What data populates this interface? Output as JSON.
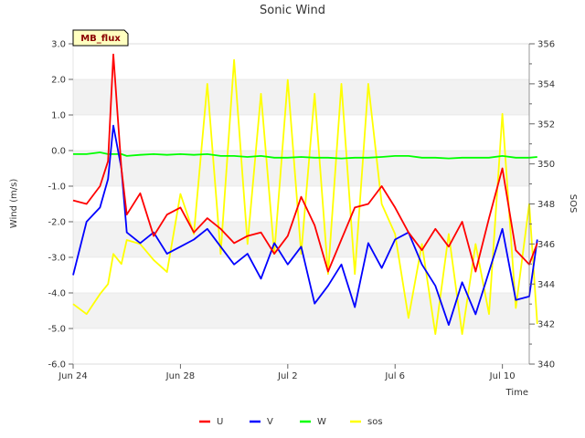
{
  "chart_data": {
    "type": "line",
    "title": "Sonic Wind",
    "badge": "MB_flux",
    "xlabel": "Time",
    "ylabel": "Wind (m/s)",
    "y2label": "SOS",
    "ylim": [
      -6.0,
      3.0
    ],
    "y2lim": [
      340,
      356
    ],
    "xlim": [
      0,
      17.0
    ],
    "yticks": [
      "3.0",
      "2.0",
      "1.0",
      "0.0",
      "-1.0",
      "-2.0",
      "-3.0",
      "-4.0",
      "-5.0",
      "-6.0"
    ],
    "y2ticks": [
      "356",
      "354",
      "352",
      "350",
      "348",
      "346",
      "344",
      "342",
      "340"
    ],
    "xticks": [
      {
        "label": "Jun 24",
        "x": 0
      },
      {
        "label": "Jun 28",
        "x": 4
      },
      {
        "label": "Jul 2",
        "x": 8
      },
      {
        "label": "Jul 6",
        "x": 12
      },
      {
        "label": "Jul 10",
        "x": 16
      }
    ],
    "x": [
      0,
      0.5,
      1.0,
      1.3,
      1.5,
      1.8,
      2.0,
      2.5,
      3.0,
      3.5,
      4.0,
      4.5,
      5.0,
      5.5,
      6.0,
      6.5,
      7.0,
      7.5,
      8.0,
      8.5,
      9.0,
      9.5,
      10.0,
      10.5,
      11.0,
      11.5,
      12.0,
      12.5,
      13.0,
      13.5,
      14.0,
      14.5,
      15.0,
      15.5,
      16.0,
      16.5,
      17.0,
      17.3
    ],
    "series": [
      {
        "name": "U",
        "color": "#ff0000",
        "axis": "left",
        "values": [
          -1.4,
          -1.5,
          -1.0,
          -0.3,
          2.7,
          -0.5,
          -1.8,
          -1.2,
          -2.4,
          -1.8,
          -1.6,
          -2.3,
          -1.9,
          -2.2,
          -2.6,
          -2.4,
          -2.3,
          -2.9,
          -2.4,
          -1.3,
          -2.1,
          -3.4,
          -2.5,
          -1.6,
          -1.5,
          -1.0,
          -1.6,
          -2.3,
          -2.8,
          -2.2,
          -2.7,
          -2.0,
          -3.4,
          -1.9,
          -0.5,
          -2.8,
          -3.2,
          -2.6
        ]
      },
      {
        "name": "V",
        "color": "#0000ff",
        "axis": "left",
        "values": [
          -3.5,
          -2.0,
          -1.6,
          -0.8,
          0.7,
          -0.5,
          -2.3,
          -2.6,
          -2.3,
          -2.9,
          -2.7,
          -2.5,
          -2.2,
          -2.7,
          -3.2,
          -2.9,
          -3.6,
          -2.6,
          -3.2,
          -2.7,
          -4.3,
          -3.8,
          -3.2,
          -4.4,
          -2.6,
          -3.3,
          -2.5,
          -2.3,
          -3.2,
          -3.8,
          -4.9,
          -3.7,
          -4.6,
          -3.4,
          -2.2,
          -4.2,
          -4.1,
          -2.5
        ]
      },
      {
        "name": "W",
        "color": "#00ff00",
        "axis": "left",
        "values": [
          -0.1,
          -0.1,
          -0.05,
          -0.1,
          -0.1,
          -0.1,
          -0.15,
          -0.12,
          -0.1,
          -0.12,
          -0.1,
          -0.12,
          -0.1,
          -0.15,
          -0.15,
          -0.18,
          -0.15,
          -0.2,
          -0.2,
          -0.18,
          -0.2,
          -0.2,
          -0.22,
          -0.2,
          -0.2,
          -0.18,
          -0.15,
          -0.15,
          -0.2,
          -0.2,
          -0.22,
          -0.2,
          -0.2,
          -0.2,
          -0.15,
          -0.2,
          -0.2,
          -0.18
        ]
      },
      {
        "name": "sos",
        "color": "#ffff00",
        "axis": "right",
        "values": [
          343,
          342.5,
          343.5,
          344,
          345.5,
          345,
          346.2,
          346,
          345.2,
          344.6,
          348.5,
          346.5,
          354,
          345.5,
          355.2,
          346,
          353.5,
          345.5,
          354.2,
          345.5,
          353.5,
          344.5,
          354,
          344.5,
          354,
          348,
          346.5,
          342.3,
          346,
          341.5,
          346.5,
          341.5,
          346,
          342.5,
          352.5,
          342.8,
          348,
          342
        ]
      }
    ],
    "grid": true,
    "legend_position": "bottom-center"
  }
}
